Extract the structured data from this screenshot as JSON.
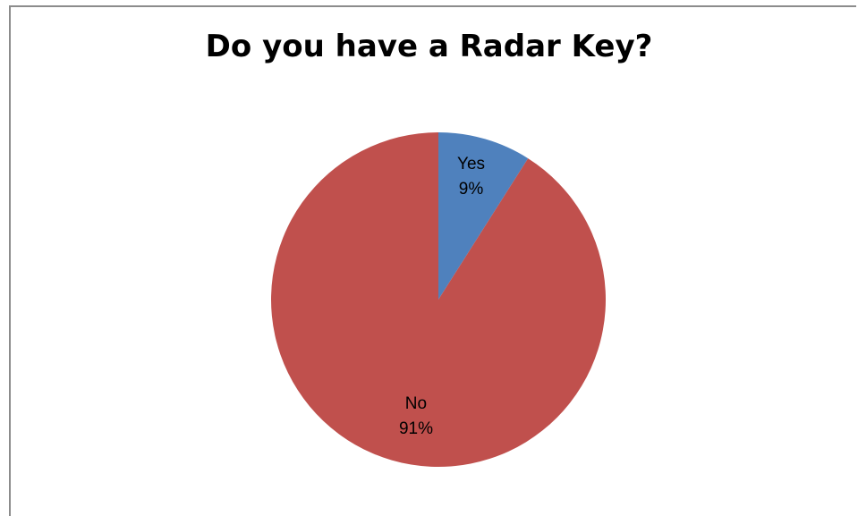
{
  "chart_data": {
    "type": "pie",
    "title": "Do you have a Radar Key?",
    "slices": [
      {
        "label": "Yes",
        "value": 9,
        "value_label": "9%",
        "color": "#4f81bd"
      },
      {
        "label": "No",
        "value": 91,
        "value_label": "91%",
        "color": "#c0504d"
      }
    ],
    "start_angle": "12 o'clock",
    "direction": "clockwise",
    "legend": "none",
    "data_labels": "inside"
  }
}
